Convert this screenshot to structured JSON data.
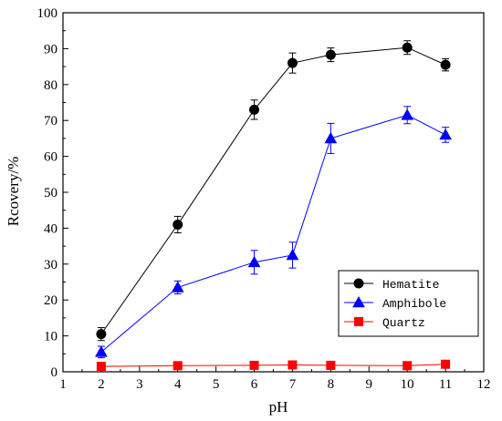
{
  "chart_data": {
    "type": "line",
    "title": "",
    "xlabel": "pH",
    "ylabel": "Rcovery/%",
    "xlim": [
      1,
      12
    ],
    "ylim": [
      0,
      100
    ],
    "xticks": [
      "1",
      "2",
      "3",
      "4",
      "5",
      "6",
      "7",
      "8",
      "9",
      "10",
      "11",
      "12"
    ],
    "yticks": [
      "0",
      "10",
      "20",
      "30",
      "40",
      "50",
      "60",
      "70",
      "80",
      "90",
      "100"
    ],
    "legend_position": "bottom-right",
    "grid": false,
    "series": [
      {
        "name": "Hematite",
        "color": "#000000",
        "marker": "circle",
        "x": [
          2,
          4,
          6,
          7,
          8,
          10,
          11
        ],
        "y": [
          10.5,
          41.0,
          73.0,
          86.0,
          88.3,
          90.3,
          85.5
        ],
        "err": [
          1.8,
          2.3,
          2.7,
          2.8,
          1.9,
          1.9,
          1.7
        ]
      },
      {
        "name": "Amphibole",
        "color": "#0000ff",
        "marker": "triangle",
        "x": [
          2,
          4,
          6,
          7,
          8,
          10,
          11
        ],
        "y": [
          5.5,
          23.5,
          30.5,
          32.5,
          65.0,
          71.5,
          66.0
        ],
        "err": [
          1.6,
          1.8,
          3.3,
          3.6,
          4.2,
          2.4,
          2.1
        ]
      },
      {
        "name": "Quartz",
        "color": "#ff0000",
        "marker": "square",
        "x": [
          2,
          4,
          6,
          7,
          8,
          10,
          11
        ],
        "y": [
          1.5,
          1.7,
          1.8,
          1.9,
          1.8,
          1.7,
          2.1
        ],
        "err": [
          0.5,
          0.5,
          0.5,
          0.5,
          0.5,
          0.5,
          0.5
        ]
      }
    ]
  }
}
